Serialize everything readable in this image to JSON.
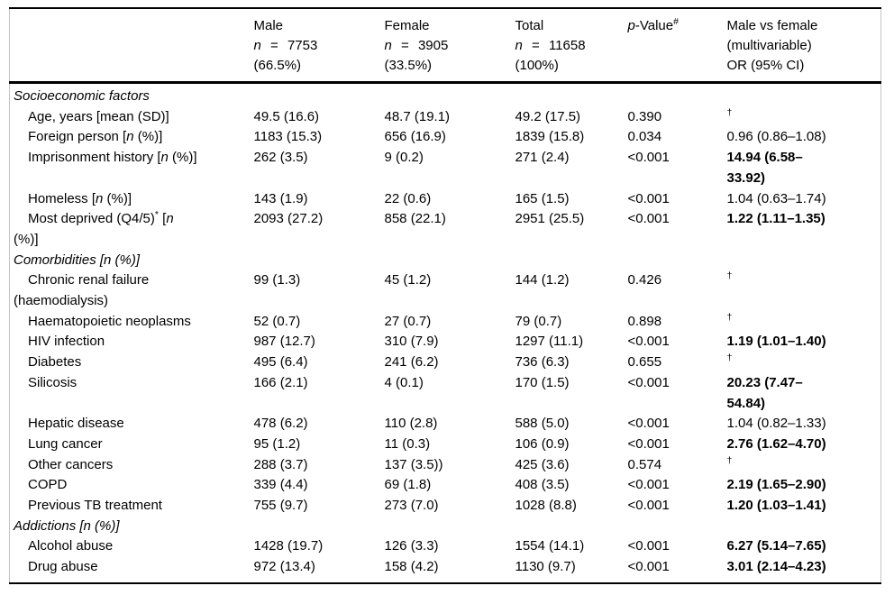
{
  "table": {
    "header": {
      "cols": [
        {
          "name": "variable",
          "lines": []
        },
        {
          "name": "male",
          "lines": [
            [
              {
                "t": "Male"
              }
            ],
            [
              {
                "t": "n",
                "i": true
              },
              {
                "t": " = 7753",
                "ws": true
              }
            ],
            [
              {
                "t": "(66.5%)"
              }
            ]
          ]
        },
        {
          "name": "female",
          "lines": [
            [
              {
                "t": "Female"
              }
            ],
            [
              {
                "t": "n",
                "i": true
              },
              {
                "t": " = 3905",
                "ws": true
              }
            ],
            [
              {
                "t": "(33.5%)"
              }
            ]
          ]
        },
        {
          "name": "total",
          "lines": [
            [
              {
                "t": "Total"
              }
            ],
            [
              {
                "t": "n",
                "i": true
              },
              {
                "t": " = 11658",
                "ws": true
              }
            ],
            [
              {
                "t": "(100%)"
              }
            ]
          ]
        },
        {
          "name": "p-value",
          "lines": [
            [
              {
                "t": "p",
                "i": true
              },
              {
                "t": "-Value"
              },
              {
                "t": "#",
                "sup": true
              }
            ]
          ]
        },
        {
          "name": "or",
          "lines": [
            [
              {
                "t": "Male vs female"
              }
            ],
            [
              {
                "t": "(multivariable)"
              }
            ],
            [
              {
                "t": "OR (95% CI)"
              }
            ]
          ]
        }
      ]
    },
    "rows": [
      {
        "type": "section",
        "label": [
          {
            "t": "Socioeconomic factors"
          }
        ]
      },
      {
        "type": "item",
        "label": [
          {
            "t": "Age, years [mean (SD)]"
          }
        ],
        "male": "49.5 (16.6)",
        "female": "48.7 (19.1)",
        "total": "49.2 (17.5)",
        "p": "0.390",
        "or": "†",
        "or_sup": true
      },
      {
        "type": "item",
        "label": [
          {
            "t": "Foreign person ["
          },
          {
            "t": "n",
            "i": true
          },
          {
            "t": " (%)]"
          }
        ],
        "male": "1183 (15.3)",
        "female": "656 (16.9)",
        "total": "1839 (15.8)",
        "p": "0.034",
        "or": "0.96 (0.86–1.08)"
      },
      {
        "type": "item",
        "label": [
          {
            "t": "Imprisonment history ["
          },
          {
            "t": "n",
            "i": true
          },
          {
            "t": " (%)]"
          }
        ],
        "male": "262 (3.5)",
        "female": "9 (0.2)",
        "total": "271 (2.4)",
        "p": "<0.001",
        "or": "14.94 (6.58–\n33.92)",
        "or_bold": true
      },
      {
        "type": "item",
        "label": [
          {
            "t": "Homeless ["
          },
          {
            "t": "n",
            "i": true
          },
          {
            "t": " (%)]"
          }
        ],
        "male": "143 (1.9)",
        "female": "22 (0.6)",
        "total": "165 (1.5)",
        "p": "<0.001",
        "or": "1.04 (0.63–1.74)"
      },
      {
        "type": "item",
        "label": [
          {
            "t": "Most deprived (Q4/5)"
          },
          {
            "t": "*",
            "sup": true
          },
          {
            "t": " ["
          },
          {
            "t": "n",
            "i": true
          },
          {
            "t": "\n(%)]"
          }
        ],
        "male": "2093 (27.2)",
        "female": "858 (22.1)",
        "total": "2951 (25.5)",
        "p": "<0.001",
        "or": "1.22 (1.11–1.35)",
        "or_bold": true
      },
      {
        "type": "section",
        "label": [
          {
            "t": "Comorbidities [n (%)]"
          }
        ]
      },
      {
        "type": "item",
        "label": [
          {
            "t": "Chronic renal failure\n(haemodialysis)"
          }
        ],
        "male": "99 (1.3)",
        "female": "45 (1.2)",
        "total": "144 (1.2)",
        "p": "0.426",
        "or": "†",
        "or_sup": true
      },
      {
        "type": "item",
        "label": [
          {
            "t": "Haematopoietic neoplasms"
          }
        ],
        "male": "52 (0.7)",
        "female": "27 (0.7)",
        "total": "79 (0.7)",
        "p": "0.898",
        "or": "†",
        "or_sup": true
      },
      {
        "type": "item",
        "label": [
          {
            "t": "HIV infection"
          }
        ],
        "male": "987 (12.7)",
        "female": "310 (7.9)",
        "total": "1297 (11.1)",
        "p": "<0.001",
        "or": "1.19 (1.01–1.40)",
        "or_bold": true
      },
      {
        "type": "item",
        "label": [
          {
            "t": "Diabetes"
          }
        ],
        "male": "495 (6.4)",
        "female": "241 (6.2)",
        "total": "736 (6.3)",
        "p": "0.655",
        "or": "†",
        "or_sup": true
      },
      {
        "type": "item",
        "label": [
          {
            "t": "Silicosis"
          }
        ],
        "male": "166 (2.1)",
        "female": "4 (0.1)",
        "total": "170 (1.5)",
        "p": "<0.001",
        "or": "20.23 (7.47–\n54.84)",
        "or_bold": true
      },
      {
        "type": "item",
        "label": [
          {
            "t": "Hepatic disease"
          }
        ],
        "male": "478 (6.2)",
        "female": "110 (2.8)",
        "total": "588 (5.0)",
        "p": "<0.001",
        "or": "1.04 (0.82–1.33)"
      },
      {
        "type": "item",
        "label": [
          {
            "t": "Lung cancer"
          }
        ],
        "male": "95 (1.2)",
        "female": "11 (0.3)",
        "total": "106 (0.9)",
        "p": "<0.001",
        "or": "2.76 (1.62–4.70)",
        "or_bold": true
      },
      {
        "type": "item",
        "label": [
          {
            "t": "Other cancers"
          }
        ],
        "male": "288 (3.7)",
        "female": "137 (3.5))",
        "total": "425 (3.6)",
        "p": "0.574",
        "or": "†",
        "or_sup": true
      },
      {
        "type": "item",
        "label": [
          {
            "t": "COPD"
          }
        ],
        "male": "339 (4.4)",
        "female": "69 (1.8)",
        "total": "408 (3.5)",
        "p": "<0.001",
        "or": "2.19 (1.65–2.90)",
        "or_bold": true
      },
      {
        "type": "item",
        "label": [
          {
            "t": "Previous TB treatment"
          }
        ],
        "male": "755 (9.7)",
        "female": "273 (7.0)",
        "total": "1028 (8.8)",
        "p": "<0.001",
        "or": "1.20 (1.03–1.41)",
        "or_bold": true
      },
      {
        "type": "section",
        "label": [
          {
            "t": "Addictions [n (%)]"
          }
        ]
      },
      {
        "type": "item",
        "label": [
          {
            "t": "Alcohol abuse"
          }
        ],
        "male": "1428 (19.7)",
        "female": "126 (3.3)",
        "total": "1554 (14.1)",
        "p": "<0.001",
        "or": "6.27 (5.14–7.65)",
        "or_bold": true
      },
      {
        "type": "item",
        "label": [
          {
            "t": "Drug abuse"
          }
        ],
        "male": "972 (13.4)",
        "female": "158 (4.2)",
        "total": "1130 (9.7)",
        "p": "<0.001",
        "or": "3.01 (2.14–4.23)",
        "or_bold": true
      }
    ]
  }
}
